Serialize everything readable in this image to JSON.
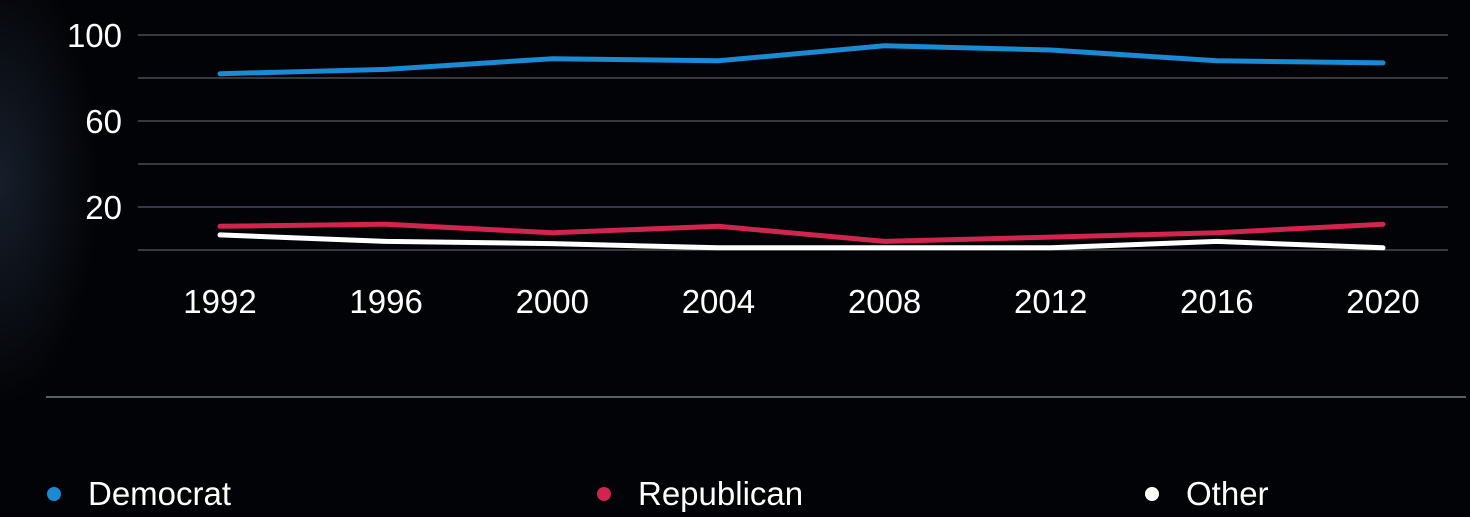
{
  "chart_data": {
    "type": "line",
    "x": [
      "1992",
      "1996",
      "2000",
      "2004",
      "2008",
      "2012",
      "2016",
      "2020"
    ],
    "y_ticks": [
      "100",
      "60",
      "20"
    ],
    "ylim": [
      0,
      100
    ],
    "grid": true,
    "legend_position": "bottom",
    "title": "",
    "xlabel": "",
    "ylabel": "",
    "series": [
      {
        "name": "Democrat",
        "color": "#1a8ad4",
        "values": [
          82,
          84,
          89,
          88,
          95,
          93,
          88,
          87
        ]
      },
      {
        "name": "Republican",
        "color": "#d1244f",
        "values": [
          11,
          12,
          8,
          11,
          4,
          6,
          8,
          12
        ]
      },
      {
        "name": "Other",
        "color": "#ffffff",
        "values": [
          7,
          4,
          3,
          1,
          1,
          1,
          4,
          1
        ]
      }
    ]
  }
}
